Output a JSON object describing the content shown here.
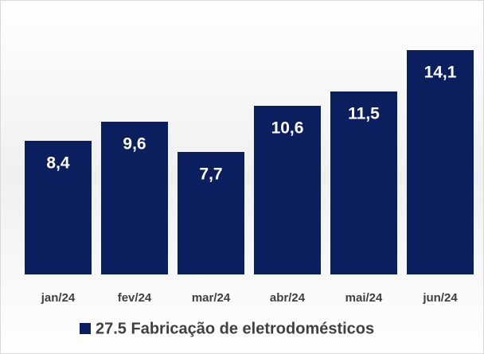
{
  "chart_data": {
    "type": "bar",
    "categories": [
      "jan/24",
      "fev/24",
      "mar/24",
      "abr/24",
      "mai/24",
      "jun/24"
    ],
    "series": [
      {
        "name": "27.5 Fabricação de eletrodomésticos",
        "color": "#0b1f5e",
        "values": [
          8.4,
          9.6,
          7.7,
          10.6,
          11.5,
          14.1
        ],
        "value_labels": [
          "8,4",
          "9,6",
          "7,7",
          "10,6",
          "11,5",
          "14,1"
        ]
      }
    ]
  }
}
